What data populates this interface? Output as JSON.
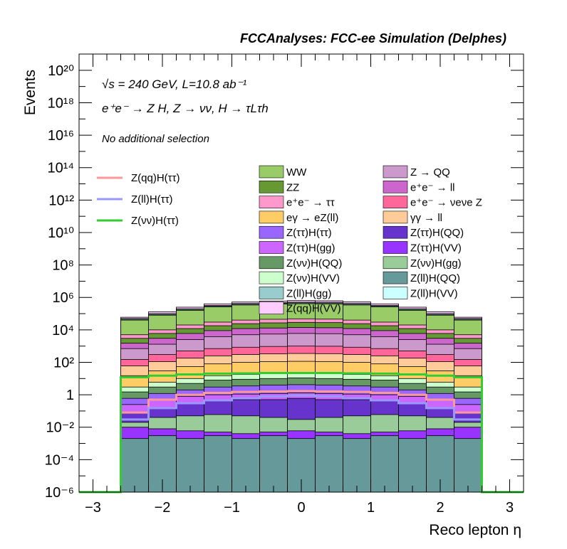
{
  "chart_data": {
    "type": "area",
    "title": "FCCAnalyses: FCC-ee Simulation (Delphes)",
    "xlabel": "Reco lepton η",
    "ylabel": "Events",
    "xlim": [
      -3.2,
      3.2
    ],
    "ylim": [
      1e-06,
      1e+21
    ],
    "y_scale": "log",
    "x_ticks": [
      "−3",
      "−2",
      "−1",
      "0",
      "1",
      "2",
      "3"
    ],
    "y_ticks": [
      "10⁻⁶",
      "10⁻⁴",
      "10⁻²",
      "1",
      "10²",
      "10⁴",
      "10⁶",
      "10⁸",
      "10¹⁰",
      "10¹²",
      "10¹⁴",
      "10¹⁶",
      "10¹⁸",
      "10²⁰"
    ],
    "grid": false,
    "annotations": [
      "√s = 240 GeV, L=10.8 ab⁻¹",
      "e⁺e⁻ → Z H, Z → νν, H → τLτh",
      "No additional selection"
    ],
    "bin_edges": [
      -2.6,
      -2.2,
      -1.8,
      -1.4,
      -1.0,
      -0.6,
      -0.2,
      0.2,
      0.6,
      1.0,
      1.4,
      1.8,
      2.2,
      2.6
    ],
    "stack_tops": [
      {
        "name": "Z(qq)H(VV)",
        "color": "#ffccff",
        "values": [
          60000,
          130000,
          250000,
          400000,
          520000,
          600000,
          640000,
          620000,
          530000,
          400000,
          250000,
          130000,
          60000
        ]
      },
      {
        "name": "Z(ll)H(VV)",
        "color": "#ccffff",
        "values": [
          50000,
          100000,
          200000,
          320000,
          420000,
          480000,
          510000,
          500000,
          420000,
          320000,
          200000,
          100000,
          50000
        ]
      },
      {
        "name": "Z(ll)H(gg)",
        "color": "#99cccc",
        "values": [
          45000,
          90000,
          180000,
          290000,
          380000,
          430000,
          460000,
          450000,
          380000,
          290000,
          180000,
          90000,
          45000
        ]
      },
      {
        "name": "WW",
        "color": "#99cc66",
        "values": [
          40000,
          80000,
          160000,
          260000,
          340000,
          390000,
          410000,
          400000,
          340000,
          260000,
          160000,
          80000,
          40000
        ]
      },
      {
        "name": "e⁺e⁻ → ττ",
        "color": "#ff99cc",
        "values": [
          5000,
          10000,
          20000,
          30000,
          40000,
          45000,
          48000,
          46000,
          40000,
          30000,
          20000,
          10000,
          5000
        ]
      },
      {
        "name": "ZZ",
        "color": "#669933",
        "values": [
          3000,
          6000,
          12000,
          18000,
          24000,
          27000,
          29000,
          28000,
          24000,
          18000,
          12000,
          6000,
          3000
        ]
      },
      {
        "name": "e⁺e⁻ → ll",
        "color": "#cc66cc",
        "values": [
          1500,
          3000,
          6000,
          9000,
          12000,
          13000,
          14000,
          13500,
          12000,
          9000,
          6000,
          3000,
          1500
        ]
      },
      {
        "name": "Z → QQ",
        "color": "#cc99cc",
        "values": [
          700,
          1300,
          2500,
          3800,
          5000,
          5500,
          6000,
          5800,
          5000,
          3800,
          2500,
          1300,
          700
        ]
      },
      {
        "name": "e⁺e⁻ → νeνe Z",
        "color": "#ff6699",
        "values": [
          150,
          300,
          500,
          700,
          850,
          950,
          1000,
          980,
          850,
          700,
          500,
          300,
          150
        ]
      },
      {
        "name": "γγ → ll",
        "color": "#ffcc99",
        "values": [
          60,
          110,
          180,
          250,
          300,
          330,
          350,
          340,
          300,
          250,
          180,
          110,
          60
        ]
      },
      {
        "name": "eγ → eZ(ll)",
        "color": "#ffcc66",
        "values": [
          15,
          30,
          55,
          80,
          100,
          110,
          115,
          112,
          100,
          80,
          55,
          30,
          15
        ]
      },
      {
        "name": "Z(νν)H(VV)",
        "color": "#ccffcc",
        "values": [
          3,
          6,
          10,
          15,
          18,
          20,
          21,
          20,
          18,
          15,
          10,
          6,
          3
        ]
      },
      {
        "name": "Z(νν)H(QQ)",
        "color": "#669966",
        "values": [
          1.5,
          3,
          5,
          8,
          9,
          10,
          11,
          10,
          9,
          8,
          5,
          3,
          1.5
        ]
      },
      {
        "name": "Z(ττ)H(ττ)",
        "color": "#9966ff",
        "values": [
          0.6,
          1.2,
          2,
          3,
          3.5,
          4,
          4.2,
          4,
          3.5,
          3,
          2,
          1.2,
          0.6
        ]
      },
      {
        "name": "Z(ττ)H(gg)",
        "color": "#cc66ff",
        "values": [
          0.25,
          0.5,
          0.8,
          1.0,
          1.1,
          1.2,
          1.3,
          1.2,
          1.1,
          1.0,
          0.8,
          0.5,
          0.25
        ]
      },
      {
        "name": "Z(ττ)H(QQ)",
        "color": "#6633cc",
        "values": [
          0.08,
          0.15,
          0.3,
          0.4,
          0.5,
          0.5,
          0.6,
          0.5,
          0.5,
          0.4,
          0.3,
          0.15,
          0.08
        ]
      },
      {
        "name": "Z(νν)H(gg)",
        "color": "#99cc99",
        "values": [
          0.02,
          0.04,
          0.05,
          0.06,
          0.05,
          0.04,
          0.03,
          0.04,
          0.05,
          0.06,
          0.05,
          0.04,
          0.02
        ]
      },
      {
        "name": "Z(ττ)H(VV)",
        "color": "#9933ff",
        "values": [
          0.01,
          0.008,
          0.006,
          0.005,
          0.004,
          0.005,
          0.006,
          0.005,
          0.004,
          0.005,
          0.006,
          0.008,
          0.01
        ]
      },
      {
        "name": "Z(ll)H(QQ)",
        "color": "#669999",
        "values": [
          0.002,
          0.003,
          0.002,
          0.003,
          0.002,
          0.003,
          0.002,
          0.003,
          0.002,
          0.003,
          0.002,
          0.003,
          0.002
        ]
      }
    ],
    "signal_series": [
      {
        "name": "Z(qq)H(ττ)",
        "color": "#ff9999",
        "values": [
          0.08,
          0.5,
          1.0,
          1.3,
          1.5,
          1.6,
          1.7,
          1.6,
          1.5,
          1.3,
          1.0,
          0.5,
          0.08
        ]
      },
      {
        "name": "Z(ll)H(ττ)",
        "color": "#9999ff",
        "values": [
          0.03,
          0.15,
          0.3,
          0.45,
          0.6,
          0.8,
          0.9,
          0.8,
          0.6,
          0.45,
          0.3,
          0.15,
          0.03
        ]
      },
      {
        "name": "Z(νν)H(ττ)",
        "color": "#33cc33",
        "values": [
          12,
          15,
          18,
          20,
          21,
          22,
          22,
          22,
          21,
          20,
          18,
          15,
          12
        ]
      }
    ],
    "legend_signal": [
      "Z(qq)H(ττ)",
      "Z(ll)H(ττ)",
      "Z(νν)H(ττ)"
    ],
    "legend_background": [
      [
        "WW",
        "Z → QQ"
      ],
      [
        "ZZ",
        "e⁺e⁻ → ll"
      ],
      [
        "e⁺e⁻ → ττ",
        "e⁺e⁻ → νeνe Z"
      ],
      [
        "eγ → eZ(ll)",
        "γγ → ll"
      ],
      [
        "Z(ττ)H(ττ)",
        "Z(ττ)H(QQ)"
      ],
      [
        "Z(ττ)H(gg)",
        "Z(ττ)H(VV)"
      ],
      [
        "Z(νν)H(QQ)",
        "Z(νν)H(gg)"
      ],
      [
        "Z(νν)H(VV)",
        "Z(ll)H(QQ)"
      ],
      [
        "Z(ll)H(gg)",
        "Z(ll)H(VV)"
      ],
      [
        "Z(qq)H(VV)",
        ""
      ]
    ]
  }
}
